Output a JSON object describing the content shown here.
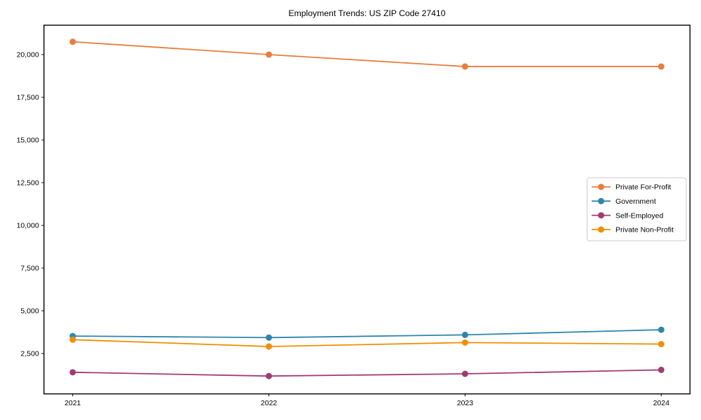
{
  "figure": {
    "title": "Employment Trends: US ZIP Code 27410"
  },
  "chart_data": {
    "type": "line",
    "title": "Employment Trends: US ZIP Code 27410",
    "xlabel": "",
    "ylabel": "",
    "categories": [
      "2021",
      "2022",
      "2023",
      "2024"
    ],
    "series": [
      {
        "name": "Private For-Profit",
        "color": "#E87D3E",
        "values": [
          20750,
          20000,
          19300,
          19300
        ]
      },
      {
        "name": "Government",
        "color": "#2E86AB",
        "values": [
          3520,
          3430,
          3590,
          3890
        ]
      },
      {
        "name": "Self-Employed",
        "color": "#A23B72",
        "values": [
          1400,
          1180,
          1310,
          1540
        ]
      },
      {
        "name": "Private Non-Profit",
        "color": "#F18F01",
        "values": [
          3310,
          2910,
          3140,
          3050
        ]
      }
    ],
    "yticks": [
      2500,
      5000,
      7500,
      10000,
      12500,
      15000,
      17500,
      20000
    ],
    "ytick_labels": [
      "2,500",
      "5,000",
      "7,500",
      "10,000",
      "12,500",
      "15,000",
      "17,500",
      "20,000"
    ],
    "ylim": [
      135,
      21720
    ],
    "grid": false,
    "legend_position": "center-right",
    "marker": "circle",
    "axis_color": "#000000",
    "legend_border_color": "#cccccc",
    "background": "#ffffff"
  }
}
